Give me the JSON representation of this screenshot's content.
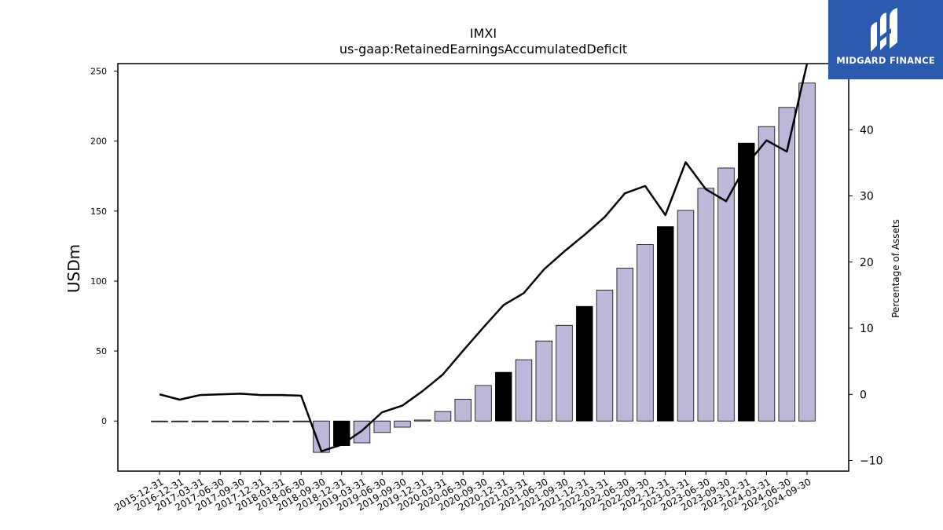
{
  "chart_data": {
    "type": "bar",
    "title": "IMXI",
    "subtitle": "us-gaap:RetainedEarningsAccumulatedDeficit",
    "ylabel": "USDm",
    "ylabel_right": "Percentage of Assets",
    "categories": [
      "2015-12-31",
      "2016-12-31",
      "2017-03-31",
      "2017-06-30",
      "2017-09-30",
      "2017-12-31",
      "2018-03-31",
      "2018-06-30",
      "2018-09-30",
      "2018-12-31",
      "2019-03-31",
      "2019-06-30",
      "2019-09-30",
      "2019-12-31",
      "2020-03-31",
      "2020-06-30",
      "2020-09-30",
      "2020-12-31",
      "2021-03-31",
      "2021-06-30",
      "2021-09-30",
      "2021-12-31",
      "2022-03-31",
      "2022-06-30",
      "2022-09-30",
      "2022-12-31",
      "2023-03-31",
      "2023-06-30",
      "2023-09-30",
      "2023-12-31",
      "2024-03-31",
      "2024-06-30",
      "2024-09-30"
    ],
    "series": [
      {
        "axis": "left",
        "kind": "bar",
        "values": [
          0,
          0,
          -0.3,
          0,
          0,
          -0.3,
          -0.3,
          -0.3,
          -22.4,
          -17.6,
          -15.6,
          -8.2,
          -4.4,
          0.7,
          6.8,
          15.6,
          25.4,
          34.8,
          43.8,
          57.2,
          68.4,
          81.9,
          93.5,
          109.2,
          126.1,
          138.9,
          150.5,
          166.3,
          180.8,
          198.6,
          210.4,
          224.1,
          241.5
        ],
        "highlighted": [
          false,
          false,
          false,
          false,
          false,
          false,
          false,
          false,
          false,
          true,
          false,
          false,
          false,
          false,
          false,
          false,
          false,
          true,
          false,
          false,
          false,
          true,
          false,
          false,
          false,
          true,
          false,
          false,
          false,
          true,
          false,
          false,
          false
        ]
      },
      {
        "axis": "right",
        "kind": "line",
        "values": [
          0,
          -0.8,
          -0.1,
          0,
          0.1,
          -0.1,
          -0.1,
          -0.2,
          -8.6,
          -7.6,
          -5.5,
          -2.7,
          -1.7,
          0.5,
          3.0,
          6.6,
          10.1,
          13.5,
          15.3,
          18.9,
          21.6,
          24.1,
          26.8,
          30.4,
          31.5,
          27.1,
          35.1,
          31.0,
          29.2,
          34.7,
          38.4,
          36.7,
          50.0
        ]
      }
    ],
    "ylim_left": [
      -35.8,
      255.4
    ],
    "ylim_right": [
      -11.6,
      50.0
    ],
    "yticks_left": [
      "0",
      "50",
      "100",
      "150",
      "200",
      "250"
    ],
    "yticks_right": [
      "−10",
      "0",
      "10",
      "20",
      "30",
      "40"
    ],
    "colors": {
      "bar": "#bcb8da",
      "bar_highlight": "#000000",
      "line": "#000000",
      "logo_bg": "#2a59ad"
    },
    "grid": false,
    "legend": "none"
  },
  "logo": {
    "text": "MIDGARD FINANCE",
    "icon": "midgard-finance-logo-icon"
  }
}
